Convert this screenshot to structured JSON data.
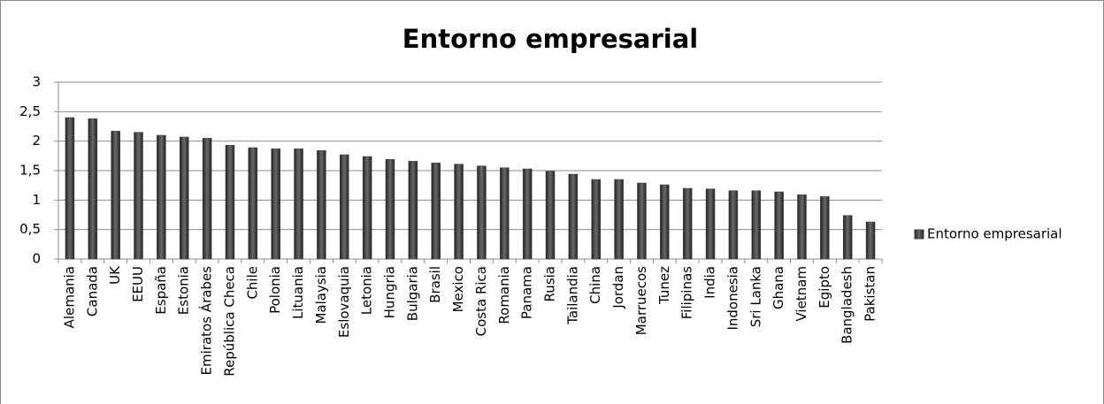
{
  "chart_data": {
    "type": "bar",
    "title": "Entorno empresarial",
    "categories": [
      "Alemania",
      "Canada",
      "UK",
      "EEUU",
      "España",
      "Estonia",
      "Emiratos Árabes",
      "República Checa",
      "Chile",
      "Polonia",
      "Lituania",
      "Malaysia",
      "Eslovaquia",
      "Letonia",
      "Hungria",
      "Bulgaria",
      "Brasil",
      "Mexico",
      "Costa Rica",
      "Romania",
      "Panama",
      "Rusia",
      "Tailandia",
      "China",
      "Jordan",
      "Marruecos",
      "Tunez",
      "Filipinas",
      "India",
      "Indonesia",
      "Sri Lanka",
      "Ghana",
      "Vietnam",
      "Egipto",
      "Bangladesh",
      "Pakistan"
    ],
    "series": [
      {
        "name": "Entorno empresarial",
        "color": "#404040",
        "values": [
          2.4,
          2.38,
          2.17,
          2.15,
          2.1,
          2.07,
          2.05,
          1.93,
          1.89,
          1.87,
          1.87,
          1.84,
          1.77,
          1.74,
          1.69,
          1.66,
          1.63,
          1.61,
          1.58,
          1.55,
          1.53,
          1.49,
          1.44,
          1.35,
          1.35,
          1.29,
          1.26,
          1.2,
          1.19,
          1.16,
          1.16,
          1.14,
          1.09,
          1.06,
          0.74,
          0.63
        ]
      }
    ],
    "ylim": [
      0,
      3
    ],
    "yticks": [
      0,
      {
        "value": 0.5,
        "label": "0,5"
      },
      1,
      {
        "value": 1.5,
        "label": "1,5"
      },
      2,
      {
        "value": 2.5,
        "label": "2,5"
      },
      3
    ],
    "grid": true,
    "legend": "right"
  }
}
